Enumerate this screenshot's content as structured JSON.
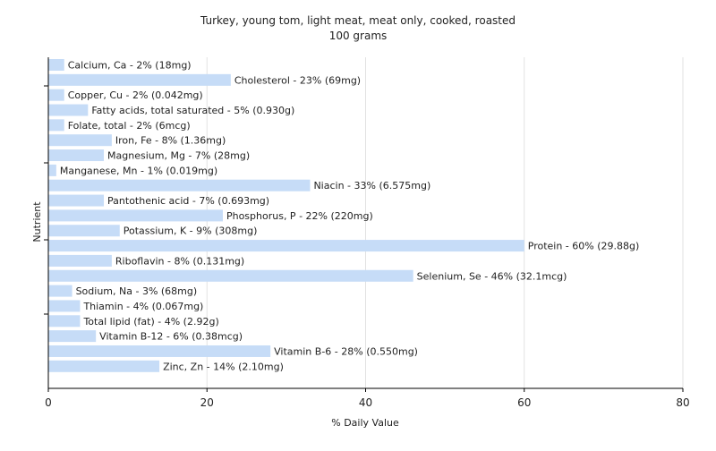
{
  "chart_data": {
    "type": "bar",
    "orientation": "horizontal",
    "title": "Turkey, young tom, light meat, meat only, cooked, roasted",
    "subtitle": "100 grams",
    "xlabel": "% Daily Value",
    "ylabel": "Nutrient",
    "xlim": [
      0,
      80
    ],
    "xticks": [
      0,
      20,
      40,
      60,
      80
    ],
    "grid": true,
    "bar_color": "#c6dcf7",
    "categories": [
      "Calcium, Ca",
      "Cholesterol",
      "Copper, Cu",
      "Fatty acids, total saturated",
      "Folate, total",
      "Iron, Fe",
      "Magnesium, Mg",
      "Manganese, Mn",
      "Niacin",
      "Pantothenic acid",
      "Phosphorus, P",
      "Potassium, K",
      "Protein",
      "Riboflavin",
      "Selenium, Se",
      "Sodium, Na",
      "Thiamin",
      "Total lipid (fat)",
      "Vitamin B-12",
      "Vitamin B-6",
      "Zinc, Zn"
    ],
    "values": [
      2,
      23,
      2,
      5,
      2,
      8,
      7,
      1,
      33,
      7,
      22,
      9,
      60,
      8,
      46,
      3,
      4,
      4,
      6,
      28,
      14
    ],
    "labels": [
      "Calcium, Ca - 2% (18mg)",
      "Cholesterol - 23% (69mg)",
      "Copper, Cu - 2% (0.042mg)",
      "Fatty acids, total saturated - 5% (0.930g)",
      "Folate, total - 2% (6mcg)",
      "Iron, Fe - 8% (1.36mg)",
      "Magnesium, Mg - 7% (28mg)",
      "Manganese, Mn - 1% (0.019mg)",
      "Niacin - 33% (6.575mg)",
      "Pantothenic acid - 7% (0.693mg)",
      "Phosphorus, P - 22% (220mg)",
      "Potassium, K - 9% (308mg)",
      "Protein - 60% (29.88g)",
      "Riboflavin - 8% (0.131mg)",
      "Selenium, Se - 46% (32.1mcg)",
      "Sodium, Na - 3% (68mg)",
      "Thiamin - 4% (0.067mg)",
      "Total lipid (fat) - 4% (2.92g)",
      "Vitamin B-12 - 6% (0.38mcg)",
      "Vitamin B-6 - 28% (0.550mg)",
      "Zinc, Zn - 14% (2.10mg)"
    ]
  }
}
